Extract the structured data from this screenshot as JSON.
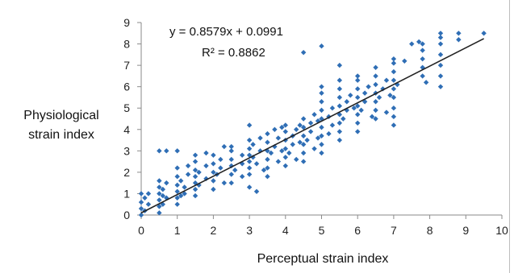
{
  "chart_data": {
    "type": "scatter",
    "xlabel": "Perceptual strain index",
    "ylabel": "Physiological strain index",
    "xlim": [
      0,
      10
    ],
    "ylim": [
      0,
      9
    ],
    "x_ticks": [
      "0",
      "1",
      "2",
      "3",
      "4",
      "5",
      "6",
      "7",
      "8",
      "9",
      "10"
    ],
    "y_ticks": [
      "0",
      "1",
      "2",
      "3",
      "4",
      "5",
      "6",
      "7",
      "8",
      "9"
    ],
    "grid": false,
    "marker_color": "#2f6eb5",
    "trendline": {
      "slope": 0.8579,
      "intercept": 0.0991,
      "x_range": [
        0,
        9.5
      ],
      "color": "#222222"
    },
    "annotations": {
      "equation": "y = 0.8579x + 0.0991",
      "r_squared": "R² = 0.8862"
    },
    "series": [
      {
        "points": [
          [
            0,
            0
          ],
          [
            0,
            0.3
          ],
          [
            0,
            0.6
          ],
          [
            0,
            1.0
          ],
          [
            0.1,
            0.2
          ],
          [
            0.1,
            0.8
          ],
          [
            0.2,
            0.5
          ],
          [
            0.2,
            1.0
          ],
          [
            0.5,
            0.1
          ],
          [
            0.5,
            0.4
          ],
          [
            0.5,
            0.7
          ],
          [
            0.5,
            1.0
          ],
          [
            0.5,
            1.3
          ],
          [
            0.5,
            1.6
          ],
          [
            0.5,
            3.0
          ],
          [
            0.6,
            0.5
          ],
          [
            0.6,
            0.9
          ],
          [
            0.6,
            1.2
          ],
          [
            0.7,
            0.8
          ],
          [
            0.7,
            1.5
          ],
          [
            0.7,
            3.0
          ],
          [
            1.0,
            0.5
          ],
          [
            1.0,
            0.8
          ],
          [
            1.0,
            1.1
          ],
          [
            1.0,
            1.4
          ],
          [
            1.0,
            1.8
          ],
          [
            1.0,
            2.2
          ],
          [
            1.0,
            3.0
          ],
          [
            1.1,
            0.9
          ],
          [
            1.1,
            1.6
          ],
          [
            1.2,
            1.0
          ],
          [
            1.2,
            1.3
          ],
          [
            1.3,
            1.9
          ],
          [
            1.3,
            2.3
          ],
          [
            1.5,
            0.9
          ],
          [
            1.5,
            1.2
          ],
          [
            1.5,
            1.5
          ],
          [
            1.5,
            1.8
          ],
          [
            1.5,
            2.1
          ],
          [
            1.5,
            2.5
          ],
          [
            1.5,
            2.8
          ],
          [
            1.6,
            1.4
          ],
          [
            1.6,
            2.0
          ],
          [
            1.8,
            1.7
          ],
          [
            1.8,
            2.3
          ],
          [
            1.8,
            2.9
          ],
          [
            2.0,
            1.2
          ],
          [
            2.0,
            1.6
          ],
          [
            2.0,
            2.0
          ],
          [
            2.0,
            2.4
          ],
          [
            2.0,
            2.8
          ],
          [
            2.1,
            1.9
          ],
          [
            2.2,
            2.2
          ],
          [
            2.2,
            2.6
          ],
          [
            2.3,
            1.5
          ],
          [
            2.3,
            3.2
          ],
          [
            2.5,
            1.5
          ],
          [
            2.5,
            1.9
          ],
          [
            2.5,
            2.3
          ],
          [
            2.5,
            2.6
          ],
          [
            2.5,
            3.0
          ],
          [
            2.5,
            3.2
          ],
          [
            2.6,
            2.1
          ],
          [
            2.8,
            2.4
          ],
          [
            2.8,
            2.8
          ],
          [
            2.8,
            1.8
          ],
          [
            3.0,
            1.3
          ],
          [
            3.0,
            1.9
          ],
          [
            3.0,
            2.2
          ],
          [
            3.0,
            2.5
          ],
          [
            3.0,
            2.8
          ],
          [
            3.0,
            3.1
          ],
          [
            3.0,
            3.5
          ],
          [
            3.0,
            4.2
          ],
          [
            3.1,
            2.7
          ],
          [
            3.1,
            3.3
          ],
          [
            3.2,
            1.1
          ],
          [
            3.2,
            2.4
          ],
          [
            3.3,
            3.0
          ],
          [
            3.3,
            3.6
          ],
          [
            3.4,
            2.1
          ],
          [
            3.5,
            1.8
          ],
          [
            3.5,
            2.2
          ],
          [
            3.5,
            2.6
          ],
          [
            3.5,
            3.0
          ],
          [
            3.5,
            3.4
          ],
          [
            3.5,
            3.8
          ],
          [
            3.6,
            2.9
          ],
          [
            3.7,
            3.2
          ],
          [
            3.7,
            4.0
          ],
          [
            3.8,
            2.5
          ],
          [
            3.8,
            3.6
          ],
          [
            3.9,
            3.0
          ],
          [
            3.9,
            4.1
          ],
          [
            4.0,
            2.3
          ],
          [
            4.0,
            2.7
          ],
          [
            4.0,
            3.1
          ],
          [
            4.0,
            3.5
          ],
          [
            4.0,
            3.9
          ],
          [
            4.0,
            4.2
          ],
          [
            4.1,
            2.9
          ],
          [
            4.2,
            3.3
          ],
          [
            4.2,
            3.7
          ],
          [
            4.3,
            4.0
          ],
          [
            4.3,
            2.6
          ],
          [
            4.4,
            3.4
          ],
          [
            4.4,
            4.2
          ],
          [
            4.5,
            2.5
          ],
          [
            4.5,
            2.9
          ],
          [
            4.5,
            3.3
          ],
          [
            4.5,
            3.7
          ],
          [
            4.5,
            4.1
          ],
          [
            4.5,
            4.5
          ],
          [
            4.5,
            7.6
          ],
          [
            4.6,
            3.5
          ],
          [
            4.7,
            3.9
          ],
          [
            4.7,
            4.3
          ],
          [
            4.8,
            3.1
          ],
          [
            4.8,
            4.7
          ],
          [
            4.9,
            3.6
          ],
          [
            4.9,
            4.4
          ],
          [
            5.0,
            2.9
          ],
          [
            5.0,
            3.3
          ],
          [
            5.0,
            3.7
          ],
          [
            5.0,
            4.1
          ],
          [
            5.0,
            4.5
          ],
          [
            5.0,
            4.9
          ],
          [
            5.0,
            5.3
          ],
          [
            5.0,
            5.7
          ],
          [
            5.0,
            6.0
          ],
          [
            5.0,
            7.9
          ],
          [
            5.2,
            3.8
          ],
          [
            5.2,
            4.6
          ],
          [
            5.3,
            4.2
          ],
          [
            5.3,
            5.0
          ],
          [
            5.5,
            3.5
          ],
          [
            5.5,
            3.9
          ],
          [
            5.5,
            4.3
          ],
          [
            5.5,
            4.7
          ],
          [
            5.5,
            5.1
          ],
          [
            5.5,
            5.5
          ],
          [
            5.5,
            5.9
          ],
          [
            5.5,
            6.3
          ],
          [
            5.5,
            7.0
          ],
          [
            5.6,
            4.5
          ],
          [
            5.7,
            4.9
          ],
          [
            5.7,
            5.3
          ],
          [
            5.8,
            5.6
          ],
          [
            5.9,
            5.0
          ],
          [
            6.0,
            3.9
          ],
          [
            6.0,
            4.3
          ],
          [
            6.0,
            4.7
          ],
          [
            6.0,
            5.1
          ],
          [
            6.0,
            5.5
          ],
          [
            6.0,
            5.9
          ],
          [
            6.0,
            6.3
          ],
          [
            6.0,
            6.5
          ],
          [
            6.1,
            4.9
          ],
          [
            6.2,
            5.3
          ],
          [
            6.2,
            5.7
          ],
          [
            6.3,
            6.0
          ],
          [
            6.4,
            4.6
          ],
          [
            6.5,
            4.5
          ],
          [
            6.5,
            4.9
          ],
          [
            6.5,
            5.3
          ],
          [
            6.5,
            5.7
          ],
          [
            6.5,
            6.1
          ],
          [
            6.5,
            6.5
          ],
          [
            6.5,
            6.9
          ],
          [
            6.6,
            5.5
          ],
          [
            6.7,
            5.9
          ],
          [
            6.8,
            6.3
          ],
          [
            6.8,
            4.8
          ],
          [
            6.9,
            5.6
          ],
          [
            7.0,
            4.2
          ],
          [
            7.0,
            4.6
          ],
          [
            7.0,
            5.0
          ],
          [
            7.0,
            5.5
          ],
          [
            7.0,
            5.9
          ],
          [
            7.0,
            6.3
          ],
          [
            7.0,
            6.7
          ],
          [
            7.0,
            7.1
          ],
          [
            7.0,
            7.3
          ],
          [
            7.1,
            6.1
          ],
          [
            7.3,
            7.2
          ],
          [
            7.5,
            8.0
          ],
          [
            7.8,
            6.5
          ],
          [
            7.8,
            6.9
          ],
          [
            7.8,
            7.3
          ],
          [
            7.8,
            7.7
          ],
          [
            7.8,
            8.0
          ],
          [
            7.7,
            8.1
          ],
          [
            7.9,
            6.2
          ],
          [
            8.3,
            6.0
          ],
          [
            8.3,
            6.5
          ],
          [
            8.3,
            7.0
          ],
          [
            8.3,
            7.5
          ],
          [
            8.3,
            8.0
          ],
          [
            8.3,
            8.3
          ],
          [
            8.3,
            8.5
          ],
          [
            8.8,
            8.5
          ],
          [
            8.8,
            8.2
          ],
          [
            9.5,
            8.5
          ]
        ]
      }
    ]
  }
}
